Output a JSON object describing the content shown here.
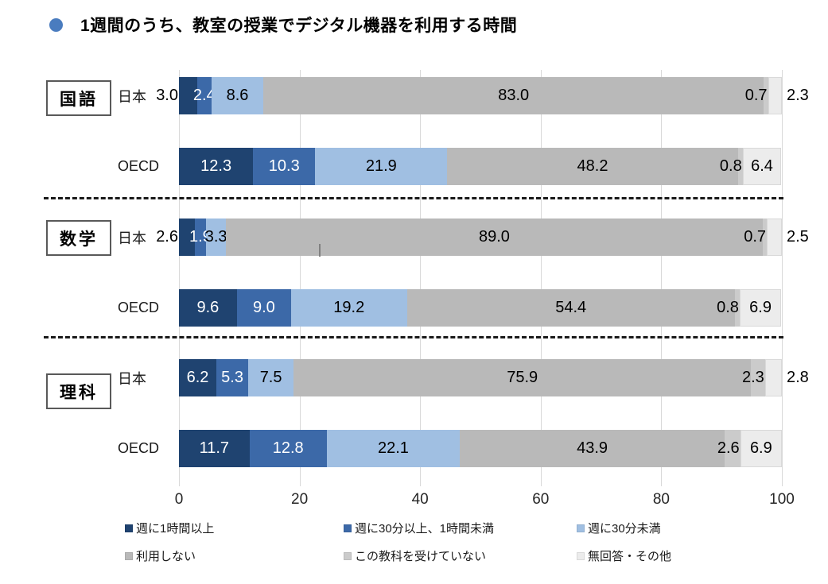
{
  "title": "1週間のうち、教室の授業でデジタル機器を利用する時間",
  "colors": {
    "title_bullet": "#4A7CBF",
    "gridline": "#d9d9d9",
    "dashed_separator": "#1a1a1a",
    "series": [
      "#1F4370",
      "#3C69A8",
      "#A0BFE2",
      "#B9B9B9",
      "#CBCBCB",
      "#ECECEC"
    ]
  },
  "chart_data": {
    "type": "bar",
    "orientation": "horizontal",
    "stacked": true,
    "title": "1週間のうち、教室の授業でデジタル機器を利用する時間",
    "xlim": [
      0,
      100
    ],
    "x_ticks": [
      "0",
      "20",
      "40",
      "60",
      "80",
      "100"
    ],
    "grid": true,
    "legend_position": "bottom",
    "legend": [
      "週に1時間以上",
      "週に30分以上、1時間未満",
      "週に30分未満",
      "利用しない",
      "この教科を受けていない",
      "無回答・その他"
    ],
    "groups": [
      {
        "subject": "国語",
        "rows": [
          {
            "label": "日本",
            "values": [
              3.0,
              2.4,
              8.6,
              83.0,
              0.7,
              2.3
            ]
          },
          {
            "label": "OECD",
            "values": [
              12.3,
              10.3,
              21.9,
              48.2,
              0.8,
              6.4
            ]
          }
        ]
      },
      {
        "subject": "数学",
        "rows": [
          {
            "label": "日本",
            "values": [
              2.6,
              1.9,
              3.3,
              89.0,
              0.7,
              2.5
            ]
          },
          {
            "label": "OECD",
            "values": [
              9.6,
              9.0,
              19.2,
              54.4,
              0.8,
              6.9
            ]
          }
        ]
      },
      {
        "subject": "理科",
        "rows": [
          {
            "label": "日本",
            "values": [
              6.2,
              5.3,
              7.5,
              75.9,
              2.3,
              2.8
            ]
          },
          {
            "label": "OECD",
            "values": [
              11.7,
              12.8,
              22.1,
              43.9,
              2.6,
              6.9
            ]
          }
        ]
      }
    ]
  }
}
